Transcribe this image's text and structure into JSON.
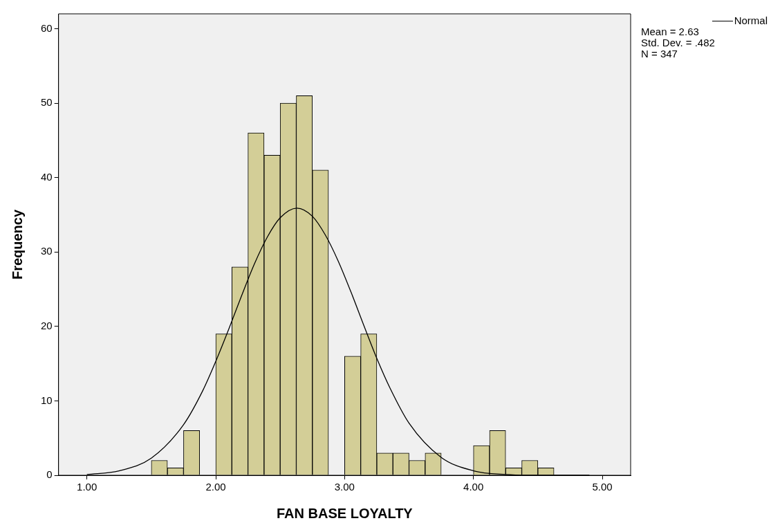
{
  "chart_data": {
    "type": "histogram",
    "xlabel": "FAN BASE LOYALTY",
    "ylabel": "Frequency",
    "bins": [
      1.5,
      1.625,
      1.75,
      1.875,
      2.0,
      2.125,
      2.25,
      2.375,
      2.5,
      2.625,
      2.75,
      2.875,
      3.0,
      3.125,
      3.25,
      3.375,
      3.5,
      3.625,
      3.75,
      3.875,
      4.0,
      4.125,
      4.25,
      4.375,
      4.5,
      4.625
    ],
    "values": [
      2,
      1,
      6,
      0,
      19,
      28,
      46,
      43,
      50,
      51,
      41,
      0,
      16,
      19,
      3,
      3,
      2,
      3,
      0,
      0,
      4,
      6,
      1,
      2,
      1
    ],
    "color": "#d3ce97",
    "series": [
      {
        "type": "line",
        "name": "Normal",
        "color": "#000000",
        "x": [
          1.0,
          1.25,
          1.5,
          1.75,
          1.9,
          2.0,
          2.1,
          2.2,
          2.3,
          2.4,
          2.5,
          2.63,
          2.75,
          2.85,
          2.95,
          3.05,
          3.15,
          3.25,
          3.35,
          3.5,
          3.75,
          4.0,
          4.25,
          4.5,
          4.9
        ],
        "values": [
          0.1,
          0.6,
          2.3,
          6.8,
          11.4,
          15.3,
          19.6,
          24.1,
          28.4,
          32.0,
          34.6,
          35.9,
          34.8,
          32.3,
          28.8,
          24.6,
          20.1,
          15.7,
          11.8,
          7.0,
          2.4,
          0.6,
          0.1,
          0.0,
          0.0
        ]
      }
    ],
    "xlim": [
      0.78,
      5.22
    ],
    "xticks": [
      {
        "value": 1,
        "label": "1.00"
      },
      {
        "value": 2,
        "label": "2.00"
      },
      {
        "value": 3,
        "label": "3.00"
      },
      {
        "value": 4,
        "label": "4.00"
      },
      {
        "value": 5,
        "label": "5.00"
      }
    ],
    "ylim": [
      0,
      62
    ],
    "yticks": [
      0,
      10,
      20,
      30,
      40,
      50,
      60
    ],
    "grid": false,
    "legend": "top right",
    "marker": "none",
    "line_style": "solid",
    "annotations": [
      "Mean = 2.63",
      "Std. Dev. = .482",
      "N = 347"
    ]
  }
}
